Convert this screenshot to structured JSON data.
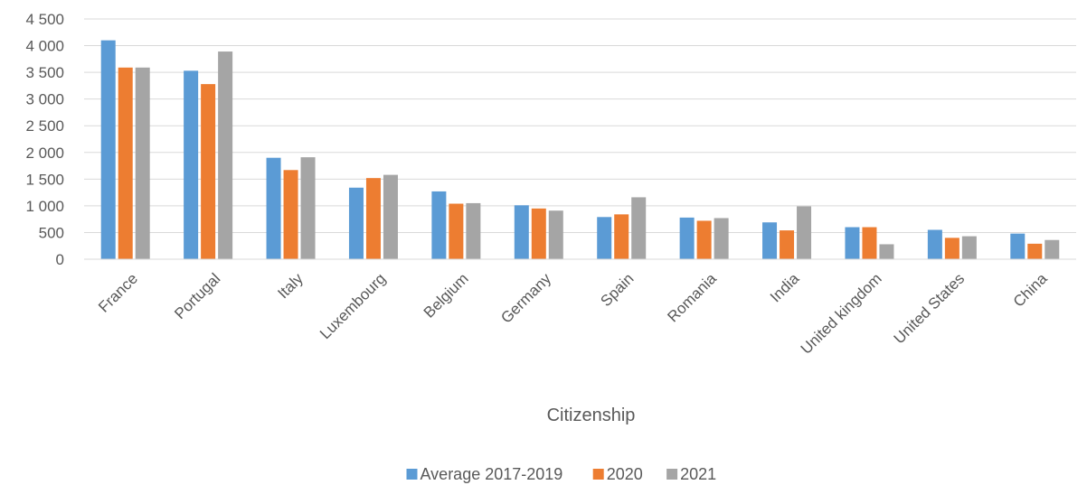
{
  "chart_data": {
    "type": "bar",
    "title": "",
    "xlabel": "Citizenship",
    "ylabel": "",
    "ylim": [
      0,
      4500
    ],
    "yticks": [
      0,
      500,
      1000,
      1500,
      2000,
      2500,
      3000,
      3500,
      4000,
      4500
    ],
    "ytick_labels": [
      "0",
      "500",
      "1 000",
      "1 500",
      "2 000",
      "2 500",
      "3 000",
      "3 500",
      "4 000",
      "4 500"
    ],
    "grid": true,
    "legend_position": "bottom",
    "categories": [
      "France",
      "Portugal",
      "Italy",
      "Luxembourg",
      "Belgium",
      "Germany",
      "Spain",
      "Romania",
      "India",
      "United kingdom",
      "United States",
      "China"
    ],
    "series": [
      {
        "name": "Average 2017-2019",
        "color": "#5B9BD5",
        "values": [
          4100,
          3530,
          1900,
          1340,
          1270,
          1010,
          790,
          780,
          690,
          600,
          550,
          480
        ]
      },
      {
        "name": "2020",
        "color": "#ED7D31",
        "values": [
          3590,
          3280,
          1670,
          1520,
          1040,
          950,
          840,
          720,
          540,
          600,
          400,
          290
        ]
      },
      {
        "name": "2021",
        "color": "#A5A5A5",
        "values": [
          3590,
          3890,
          1910,
          1580,
          1050,
          910,
          1160,
          770,
          990,
          280,
          430,
          360
        ]
      }
    ]
  }
}
